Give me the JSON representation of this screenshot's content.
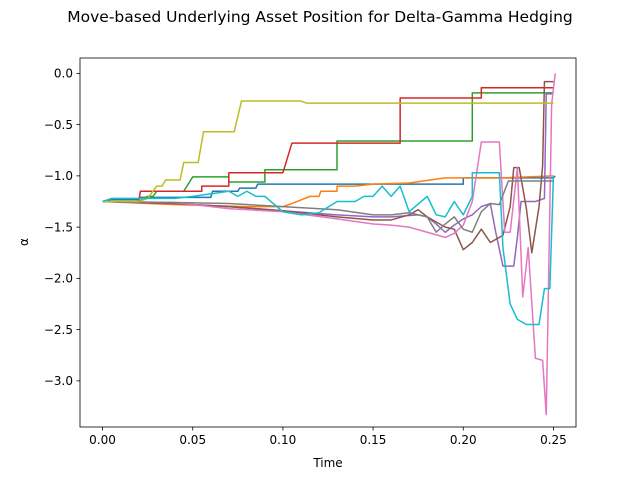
{
  "chart_data": {
    "type": "line",
    "title": "Move-based Underlying Asset Position for Delta-Gamma Hedging",
    "xlabel": "Time",
    "ylabel": "α",
    "xlim": [
      -0.0125,
      0.2625
    ],
    "ylim": [
      -3.45,
      0.15
    ],
    "xticks": [
      0.0,
      0.05,
      0.1,
      0.15,
      0.2,
      0.25
    ],
    "xtick_labels": [
      "0.00",
      "0.05",
      "0.10",
      "0.15",
      "0.20",
      "0.25"
    ],
    "yticks": [
      0.0,
      -0.5,
      -1.0,
      -1.5,
      -2.0,
      -2.5,
      -3.0
    ],
    "ytick_labels": [
      "0.0",
      "−0.5",
      "−1.0",
      "−1.5",
      "−2.0",
      "−2.5",
      "−3.0"
    ],
    "grid": false,
    "series": [
      {
        "color": "#1f77b4",
        "points": [
          [
            0.0,
            -1.25
          ],
          [
            0.005,
            -1.23
          ],
          [
            0.02,
            -1.23
          ],
          [
            0.021,
            -1.21
          ],
          [
            0.06,
            -1.21
          ],
          [
            0.061,
            -1.15
          ],
          [
            0.075,
            -1.15
          ],
          [
            0.076,
            -1.12
          ],
          [
            0.085,
            -1.12
          ],
          [
            0.086,
            -1.08
          ],
          [
            0.1,
            -1.08
          ],
          [
            0.135,
            -1.08
          ],
          [
            0.14,
            -1.08
          ],
          [
            0.2,
            -1.08
          ],
          [
            0.2,
            -1.02
          ],
          [
            0.25,
            -1.02
          ],
          [
            0.251,
            -1.0
          ]
        ]
      },
      {
        "color": "#ff7f0e",
        "points": [
          [
            0.0,
            -1.25
          ],
          [
            0.04,
            -1.28
          ],
          [
            0.08,
            -1.3
          ],
          [
            0.1,
            -1.3
          ],
          [
            0.105,
            -1.27
          ],
          [
            0.115,
            -1.2
          ],
          [
            0.12,
            -1.2
          ],
          [
            0.121,
            -1.15
          ],
          [
            0.13,
            -1.15
          ],
          [
            0.13,
            -1.1
          ],
          [
            0.14,
            -1.1
          ],
          [
            0.15,
            -1.08
          ],
          [
            0.17,
            -1.07
          ],
          [
            0.19,
            -1.02
          ],
          [
            0.205,
            -1.02
          ],
          [
            0.22,
            -1.02
          ],
          [
            0.25,
            -1.0
          ]
        ]
      },
      {
        "color": "#2ca02c",
        "points": [
          [
            0.0,
            -1.25
          ],
          [
            0.02,
            -1.25
          ],
          [
            0.025,
            -1.2
          ],
          [
            0.028,
            -1.2
          ],
          [
            0.03,
            -1.15
          ],
          [
            0.045,
            -1.15
          ],
          [
            0.05,
            -1.01
          ],
          [
            0.07,
            -1.01
          ],
          [
            0.07,
            -1.06
          ],
          [
            0.09,
            -1.06
          ],
          [
            0.09,
            -0.94
          ],
          [
            0.13,
            -0.94
          ],
          [
            0.13,
            -0.66
          ],
          [
            0.2,
            -0.66
          ],
          [
            0.205,
            -0.66
          ],
          [
            0.205,
            -0.19
          ],
          [
            0.25,
            -0.19
          ]
        ]
      },
      {
        "color": "#d62728",
        "points": [
          [
            0.0,
            -1.25
          ],
          [
            0.02,
            -1.25
          ],
          [
            0.021,
            -1.15
          ],
          [
            0.055,
            -1.15
          ],
          [
            0.055,
            -1.1
          ],
          [
            0.07,
            -1.1
          ],
          [
            0.07,
            -0.97
          ],
          [
            0.1,
            -0.97
          ],
          [
            0.105,
            -0.68
          ],
          [
            0.13,
            -0.68
          ],
          [
            0.165,
            -0.68
          ],
          [
            0.165,
            -0.24
          ],
          [
            0.2,
            -0.24
          ],
          [
            0.21,
            -0.24
          ],
          [
            0.21,
            -0.14
          ],
          [
            0.25,
            -0.14
          ]
        ]
      },
      {
        "color": "#9467bd",
        "points": [
          [
            0.0,
            -1.25
          ],
          [
            0.04,
            -1.27
          ],
          [
            0.07,
            -1.3
          ],
          [
            0.1,
            -1.34
          ],
          [
            0.13,
            -1.38
          ],
          [
            0.15,
            -1.4
          ],
          [
            0.16,
            -1.4
          ],
          [
            0.175,
            -1.38
          ],
          [
            0.18,
            -1.4
          ],
          [
            0.185,
            -1.47
          ],
          [
            0.19,
            -1.55
          ],
          [
            0.195,
            -1.48
          ],
          [
            0.2,
            -1.42
          ],
          [
            0.205,
            -1.38
          ],
          [
            0.21,
            -1.3
          ],
          [
            0.215,
            -1.27
          ],
          [
            0.218,
            -1.55
          ],
          [
            0.222,
            -1.88
          ],
          [
            0.228,
            -1.88
          ],
          [
            0.23,
            -1.6
          ],
          [
            0.232,
            -1.25
          ],
          [
            0.24,
            -1.25
          ],
          [
            0.245,
            -1.22
          ],
          [
            0.246,
            -0.2
          ],
          [
            0.25,
            -0.2
          ]
        ]
      },
      {
        "color": "#8c564b",
        "points": [
          [
            0.0,
            -1.25
          ],
          [
            0.04,
            -1.27
          ],
          [
            0.07,
            -1.3
          ],
          [
            0.1,
            -1.34
          ],
          [
            0.13,
            -1.4
          ],
          [
            0.15,
            -1.43
          ],
          [
            0.16,
            -1.43
          ],
          [
            0.17,
            -1.38
          ],
          [
            0.175,
            -1.33
          ],
          [
            0.18,
            -1.4
          ],
          [
            0.19,
            -1.5
          ],
          [
            0.195,
            -1.52
          ],
          [
            0.2,
            -1.72
          ],
          [
            0.205,
            -1.65
          ],
          [
            0.21,
            -1.52
          ],
          [
            0.215,
            -1.65
          ],
          [
            0.222,
            -1.58
          ],
          [
            0.226,
            -1.3
          ],
          [
            0.228,
            -0.92
          ],
          [
            0.231,
            -0.92
          ],
          [
            0.235,
            -1.32
          ],
          [
            0.238,
            -1.75
          ],
          [
            0.242,
            -1.3
          ],
          [
            0.244,
            -0.9
          ],
          [
            0.245,
            -0.08
          ],
          [
            0.25,
            -0.08
          ]
        ]
      },
      {
        "color": "#e377c2",
        "points": [
          [
            0.0,
            -1.25
          ],
          [
            0.04,
            -1.26
          ],
          [
            0.07,
            -1.32
          ],
          [
            0.1,
            -1.35
          ],
          [
            0.13,
            -1.42
          ],
          [
            0.15,
            -1.47
          ],
          [
            0.16,
            -1.48
          ],
          [
            0.17,
            -1.5
          ],
          [
            0.18,
            -1.55
          ],
          [
            0.19,
            -1.6
          ],
          [
            0.195,
            -1.56
          ],
          [
            0.2,
            -1.48
          ],
          [
            0.205,
            -1.25
          ],
          [
            0.21,
            -0.67
          ],
          [
            0.22,
            -0.67
          ],
          [
            0.223,
            -1.55
          ],
          [
            0.226,
            -1.55
          ],
          [
            0.23,
            -0.92
          ],
          [
            0.233,
            -2.18
          ],
          [
            0.236,
            -1.7
          ],
          [
            0.24,
            -2.78
          ],
          [
            0.244,
            -2.8
          ],
          [
            0.246,
            -3.33
          ],
          [
            0.249,
            -0.3
          ],
          [
            0.251,
            0.0
          ]
        ]
      },
      {
        "color": "#7f7f7f",
        "points": [
          [
            0.0,
            -1.25
          ],
          [
            0.04,
            -1.26
          ],
          [
            0.07,
            -1.27
          ],
          [
            0.1,
            -1.3
          ],
          [
            0.13,
            -1.33
          ],
          [
            0.15,
            -1.38
          ],
          [
            0.16,
            -1.38
          ],
          [
            0.17,
            -1.36
          ],
          [
            0.18,
            -1.4
          ],
          [
            0.185,
            -1.55
          ],
          [
            0.19,
            -1.47
          ],
          [
            0.195,
            -1.4
          ],
          [
            0.2,
            -1.52
          ],
          [
            0.205,
            -1.55
          ],
          [
            0.21,
            -1.35
          ],
          [
            0.215,
            -1.27
          ],
          [
            0.22,
            -1.28
          ],
          [
            0.225,
            -1.05
          ],
          [
            0.25,
            -1.05
          ]
        ]
      },
      {
        "color": "#bcbd22",
        "points": [
          [
            0.0,
            -1.25
          ],
          [
            0.02,
            -1.25
          ],
          [
            0.025,
            -1.22
          ],
          [
            0.03,
            -1.1
          ],
          [
            0.033,
            -1.1
          ],
          [
            0.035,
            -1.04
          ],
          [
            0.043,
            -1.04
          ],
          [
            0.045,
            -0.87
          ],
          [
            0.053,
            -0.87
          ],
          [
            0.056,
            -0.57
          ],
          [
            0.073,
            -0.57
          ],
          [
            0.077,
            -0.27
          ],
          [
            0.11,
            -0.27
          ],
          [
            0.113,
            -0.29
          ],
          [
            0.2,
            -0.29
          ],
          [
            0.25,
            -0.29
          ]
        ]
      },
      {
        "color": "#17becf",
        "points": [
          [
            0.0,
            -1.25
          ],
          [
            0.005,
            -1.22
          ],
          [
            0.03,
            -1.22
          ],
          [
            0.04,
            -1.22
          ],
          [
            0.05,
            -1.2
          ],
          [
            0.07,
            -1.15
          ],
          [
            0.075,
            -1.2
          ],
          [
            0.08,
            -1.15
          ],
          [
            0.085,
            -1.2
          ],
          [
            0.09,
            -1.2
          ],
          [
            0.1,
            -1.35
          ],
          [
            0.11,
            -1.38
          ],
          [
            0.12,
            -1.36
          ],
          [
            0.13,
            -1.25
          ],
          [
            0.14,
            -1.25
          ],
          [
            0.145,
            -1.2
          ],
          [
            0.15,
            -1.2
          ],
          [
            0.155,
            -1.1
          ],
          [
            0.16,
            -1.2
          ],
          [
            0.165,
            -1.1
          ],
          [
            0.17,
            -1.35
          ],
          [
            0.18,
            -1.2
          ],
          [
            0.185,
            -1.38
          ],
          [
            0.19,
            -1.4
          ],
          [
            0.195,
            -1.25
          ],
          [
            0.2,
            -1.38
          ],
          [
            0.205,
            -1.2
          ],
          [
            0.205,
            -0.97
          ],
          [
            0.22,
            -0.97
          ],
          [
            0.222,
            -1.7
          ],
          [
            0.226,
            -2.25
          ],
          [
            0.23,
            -2.4
          ],
          [
            0.235,
            -2.45
          ],
          [
            0.242,
            -2.45
          ],
          [
            0.245,
            -2.1
          ],
          [
            0.248,
            -2.1
          ],
          [
            0.25,
            -1.0
          ]
        ]
      }
    ]
  }
}
